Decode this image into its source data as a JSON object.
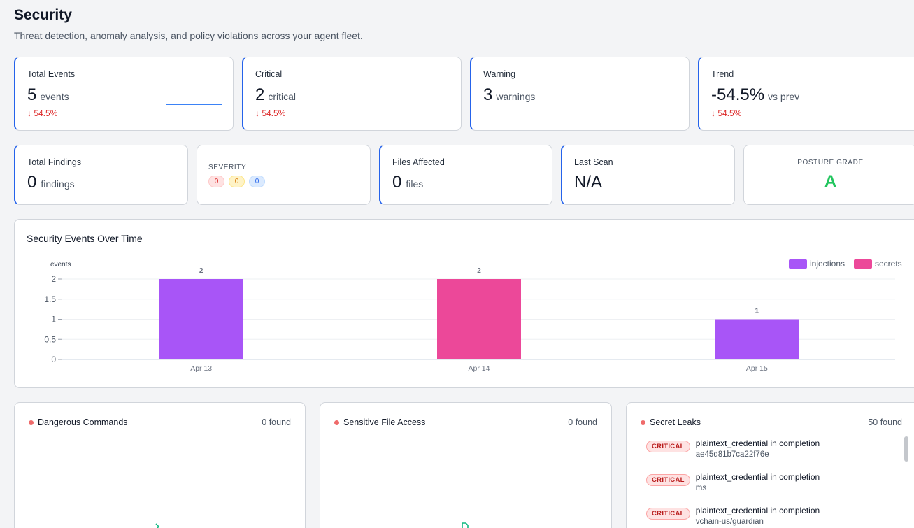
{
  "page": {
    "title": "Security",
    "subtitle": "Threat detection, anomaly analysis, and policy violations across your agent fleet."
  },
  "stats": {
    "total_events": {
      "label": "Total Events",
      "value": "5",
      "unit": "events",
      "delta": "↓ 54.5%"
    },
    "critical": {
      "label": "Critical",
      "value": "2",
      "unit": "critical",
      "delta": "↓ 54.5%"
    },
    "warning": {
      "label": "Warning",
      "value": "3",
      "unit": "warnings"
    },
    "trend": {
      "label": "Trend",
      "value": "-54.5%",
      "unit": "vs prev",
      "delta": "↓ 54.5%"
    }
  },
  "findings": {
    "total": {
      "label": "Total Findings",
      "value": "0",
      "unit": "findings"
    },
    "severity": {
      "label": "SEVERITY",
      "critical": "0",
      "warning": "0",
      "info": "0"
    },
    "files": {
      "label": "Files Affected",
      "value": "0",
      "unit": "files"
    },
    "last_scan": {
      "label": "Last Scan",
      "value": "N/A"
    },
    "posture": {
      "label": "POSTURE GRADE",
      "value": "A"
    }
  },
  "chart_title": "Security Events Over Time",
  "chart_data": {
    "type": "bar",
    "categories": [
      "Apr 13",
      "Apr 14",
      "Apr 15"
    ],
    "series": [
      {
        "name": "injections",
        "values": [
          2,
          0,
          1
        ],
        "color": "#a855f7"
      },
      {
        "name": "secrets",
        "values": [
          0,
          2,
          0
        ],
        "color": "#ec4899"
      }
    ],
    "ylabel": "events",
    "ylim": [
      0,
      2
    ],
    "yticks": [
      "0",
      "0.5",
      "1",
      "1.5",
      "2"
    ],
    "data_labels": [
      "2",
      "2",
      "1"
    ],
    "legend": "top-right",
    "grid": true
  },
  "panels": {
    "dangerous": {
      "title": "Dangerous Commands",
      "count": "0 found"
    },
    "sensitive": {
      "title": "Sensitive File Access",
      "count": "0 found"
    },
    "secrets": {
      "title": "Secret Leaks",
      "count": "50 found",
      "items": [
        {
          "badge": "CRITICAL",
          "text": "plaintext_credential in completion",
          "sub": "ae45d81b7ca22f76e"
        },
        {
          "badge": "CRITICAL",
          "text": "plaintext_credential in completion",
          "sub": "ms"
        },
        {
          "badge": "CRITICAL",
          "text": "plaintext_credential in completion",
          "sub": "vchain-us/guardian"
        }
      ]
    }
  }
}
